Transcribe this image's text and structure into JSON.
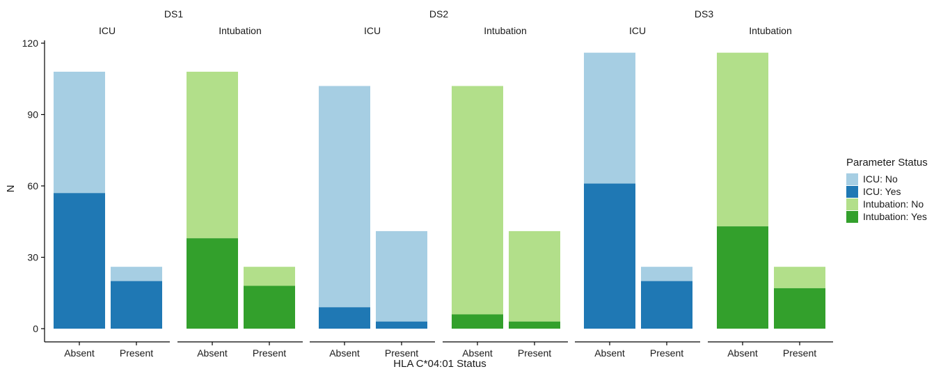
{
  "chart_data": {
    "type": "bar",
    "stacked": true,
    "xlabel": "HLA C*04:01 Status",
    "ylabel": "N",
    "ylim": [
      0,
      120
    ],
    "yticks": [
      0,
      30,
      60,
      90,
      120
    ],
    "categories": [
      "Absent",
      "Present"
    ],
    "legend": {
      "title": "Parameter Status",
      "position": "right",
      "entries": [
        {
          "label": "ICU: No",
          "color": "#a6cee3"
        },
        {
          "label": "ICU: Yes",
          "color": "#1f78b4"
        },
        {
          "label": "Intubation: No",
          "color": "#b2df8a"
        },
        {
          "label": "Intubation: Yes",
          "color": "#33a02c"
        }
      ]
    },
    "groups": [
      {
        "label": "DS1",
        "panels": [
          {
            "label": "ICU",
            "yes_color": "#1f78b4",
            "no_color": "#a6cee3",
            "bars": [
              {
                "category": "Absent",
                "yes": 57,
                "total": 108
              },
              {
                "category": "Present",
                "yes": 20,
                "total": 26
              }
            ]
          },
          {
            "label": "Intubation",
            "yes_color": "#33a02c",
            "no_color": "#b2df8a",
            "bars": [
              {
                "category": "Absent",
                "yes": 38,
                "total": 108
              },
              {
                "category": "Present",
                "yes": 18,
                "total": 26
              }
            ]
          }
        ]
      },
      {
        "label": "DS2",
        "panels": [
          {
            "label": "ICU",
            "yes_color": "#1f78b4",
            "no_color": "#a6cee3",
            "bars": [
              {
                "category": "Absent",
                "yes": 9,
                "total": 102
              },
              {
                "category": "Present",
                "yes": 3,
                "total": 41
              }
            ]
          },
          {
            "label": "Intubation",
            "yes_color": "#33a02c",
            "no_color": "#b2df8a",
            "bars": [
              {
                "category": "Absent",
                "yes": 6,
                "total": 102
              },
              {
                "category": "Present",
                "yes": 3,
                "total": 41
              }
            ]
          }
        ]
      },
      {
        "label": "DS3",
        "panels": [
          {
            "label": "ICU",
            "yes_color": "#1f78b4",
            "no_color": "#a6cee3",
            "bars": [
              {
                "category": "Absent",
                "yes": 61,
                "total": 116
              },
              {
                "category": "Present",
                "yes": 20,
                "total": 26
              }
            ]
          },
          {
            "label": "Intubation",
            "yes_color": "#33a02c",
            "no_color": "#b2df8a",
            "bars": [
              {
                "category": "Absent",
                "yes": 43,
                "total": 116
              },
              {
                "category": "Present",
                "yes": 17,
                "total": 26
              }
            ]
          }
        ]
      }
    ]
  }
}
